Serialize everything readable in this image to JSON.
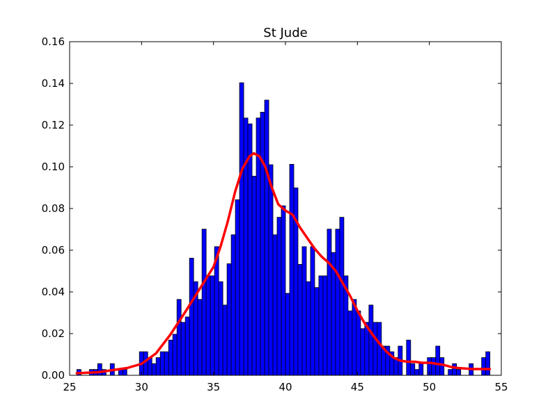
{
  "chart_data": {
    "type": "bar",
    "title": "St Jude",
    "xlabel": "",
    "ylabel": "",
    "xlim": [
      25,
      55
    ],
    "ylim": [
      0,
      0.16
    ],
    "xticks": [
      "25",
      "30",
      "35",
      "40",
      "45",
      "50",
      "55"
    ],
    "yticks": [
      "0.00",
      "0.02",
      "0.04",
      "0.06",
      "0.08",
      "0.10",
      "0.12",
      "0.14",
      "0.16"
    ],
    "grid": false,
    "legend": "none",
    "histogram": {
      "color": "#0000ff",
      "edge_color": "#000000",
      "bin_start": 25.5,
      "bin_width": 0.29,
      "values": [
        0.0028,
        0.0,
        0.0,
        0.0028,
        0.0028,
        0.0056,
        0.0028,
        0.0,
        0.0056,
        0.0,
        0.0028,
        0.0028,
        0.0,
        0.0,
        0.0,
        0.0113,
        0.0113,
        0.0085,
        0.0056,
        0.0085,
        0.0113,
        0.0113,
        0.0169,
        0.0197,
        0.0364,
        0.0254,
        0.028,
        0.0562,
        0.0449,
        0.0364,
        0.0701,
        0.0477,
        0.0477,
        0.0617,
        0.0449,
        0.0337,
        0.0535,
        0.0674,
        0.0842,
        0.1403,
        0.1234,
        0.1206,
        0.0955,
        0.1234,
        0.1262,
        0.132,
        0.101,
        0.0674,
        0.0758,
        0.0813,
        0.0393,
        0.1012,
        0.0899,
        0.0532,
        0.0617,
        0.0449,
        0.0617,
        0.0421,
        0.0477,
        0.0477,
        0.0701,
        0.0589,
        0.0701,
        0.0758,
        0.0477,
        0.0309,
        0.0364,
        0.0309,
        0.0224,
        0.0254,
        0.0337,
        0.0254,
        0.0254,
        0.014,
        0.014,
        0.0113,
        0.0085,
        0.014,
        0.0,
        0.0169,
        0.0056,
        0.0028,
        0.0056,
        0.0,
        0.0085,
        0.0085,
        0.014,
        0.0085,
        0.0,
        0.0028,
        0.0056,
        0.0028,
        0.0,
        0.0,
        0.0056,
        0.0,
        0.0,
        0.0085,
        0.0113
      ]
    },
    "kde": {
      "color": "#ff0000",
      "x": [
        25.5,
        27,
        28,
        29,
        30,
        31,
        32,
        33,
        34,
        35,
        35.5,
        36,
        36.5,
        37,
        37.5,
        37.8,
        38.2,
        38.6,
        39,
        39.5,
        40,
        40.5,
        41,
        41.5,
        42,
        42.5,
        43,
        43.5,
        44,
        44.5,
        45,
        45.5,
        46,
        46.5,
        47,
        47.5,
        48,
        48.5,
        49,
        49.5,
        50,
        50.5,
        51,
        51.5,
        52,
        53,
        54.2
      ],
      "y": [
        0.001,
        0.0015,
        0.0025,
        0.0035,
        0.0055,
        0.0105,
        0.0195,
        0.03,
        0.041,
        0.052,
        0.062,
        0.074,
        0.088,
        0.099,
        0.105,
        0.1065,
        0.105,
        0.1,
        0.091,
        0.082,
        0.079,
        0.077,
        0.071,
        0.066,
        0.061,
        0.057,
        0.054,
        0.05,
        0.044,
        0.038,
        0.031,
        0.025,
        0.02,
        0.0155,
        0.0115,
        0.0085,
        0.007,
        0.0065,
        0.0065,
        0.006,
        0.006,
        0.0055,
        0.005,
        0.004,
        0.0035,
        0.003,
        0.003
      ]
    }
  }
}
